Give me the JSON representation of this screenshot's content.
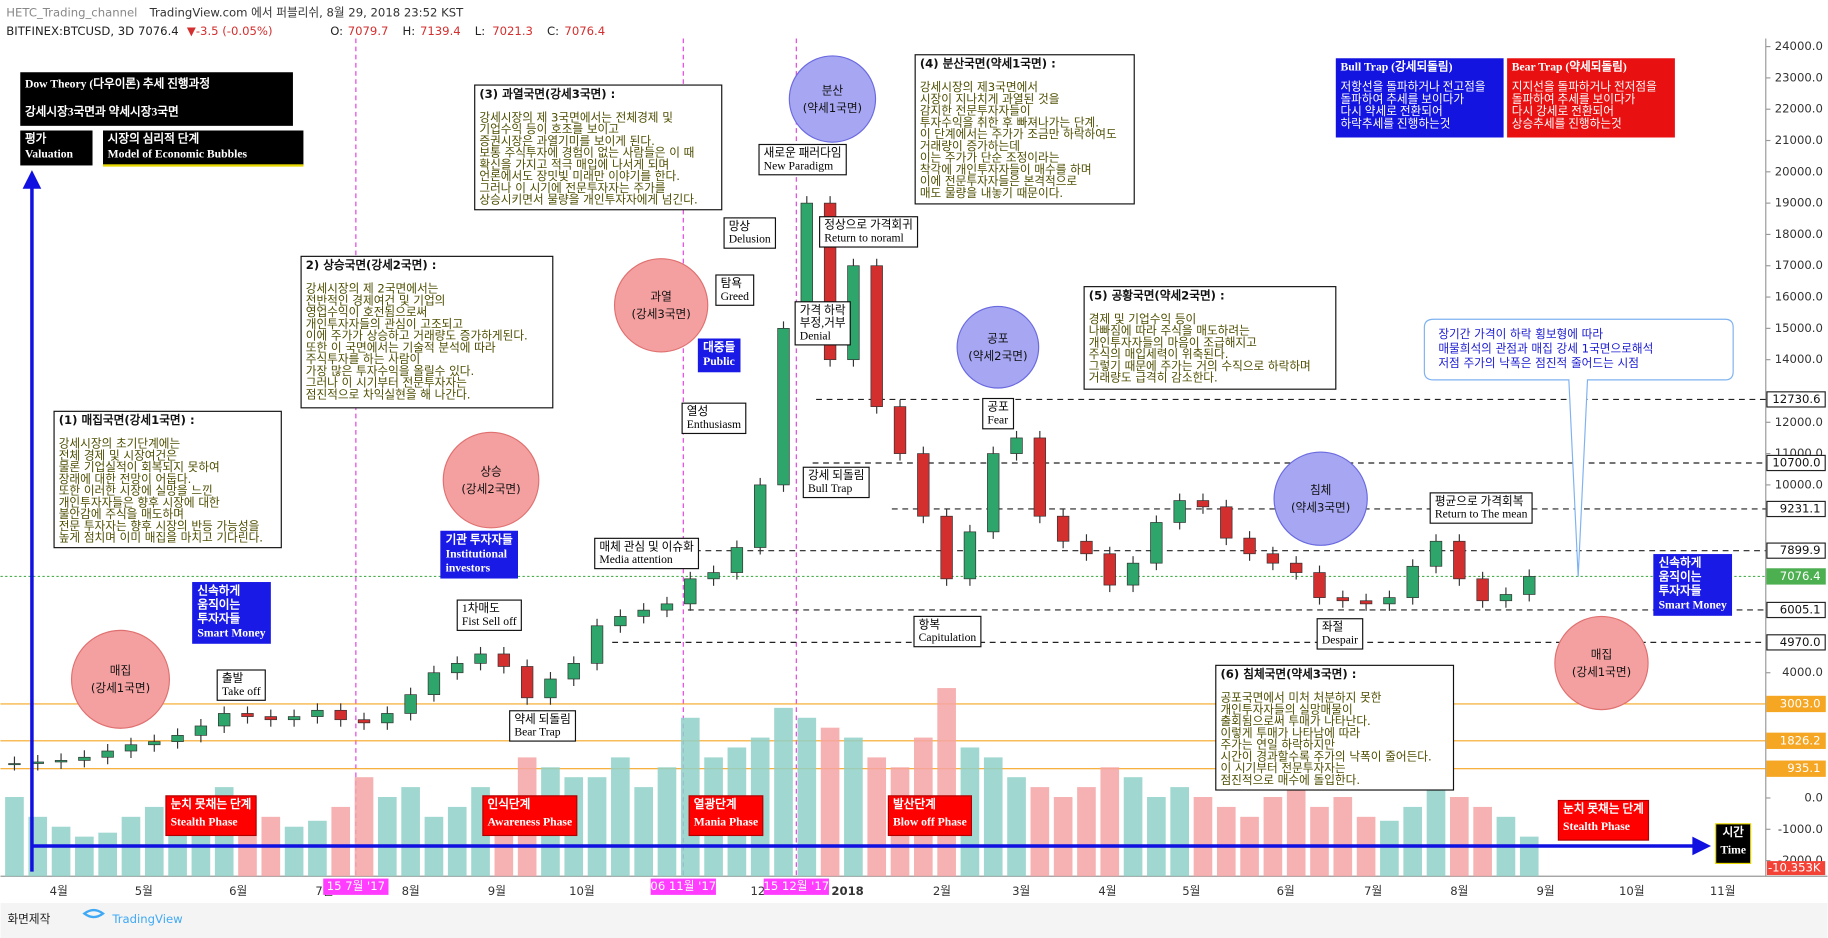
{
  "header": {
    "channel": "HETC_Trading_channel",
    "published": "TradingView.com 에서 퍼블리쉬, 8월 29, 2018 23:52 KST",
    "symbol": "BITFINEX:BTCUSD, 3D",
    "last": "7076.4",
    "change": "▼-3.5 (-0.05%)",
    "ohlc": [
      {
        "key": "O:",
        "value": "7079.7"
      },
      {
        "key": "H:",
        "value": "7139.4"
      },
      {
        "key": "L:",
        "value": "7021.3"
      },
      {
        "key": "C:",
        "value": "7076.4"
      }
    ]
  },
  "chart_data": {
    "type": "candlestick",
    "closes": [
      1100,
      1150,
      1200,
      1300,
      1500,
      1700,
      1800,
      2000,
      2300,
      2700,
      2600,
      2500,
      2600,
      2800,
      2500,
      2400,
      2700,
      3300,
      4000,
      4300,
      4600,
      4200,
      3200,
      3800,
      4300,
      5500,
      5800,
      6000,
      6200,
      7000,
      7200,
      8000,
      10000,
      15000,
      19000,
      14000,
      17000,
      12500,
      11000,
      9000,
      7000,
      8500,
      11000,
      11500,
      9000,
      8200,
      7800,
      6800,
      7500,
      8800,
      9500,
      9300,
      8300,
      7800,
      7500,
      7200,
      6400,
      6300,
      6200,
      6400,
      7400,
      8200,
      7000,
      6300,
      6500,
      7076.4
    ],
    "volume": [
      40,
      30,
      25,
      20,
      22,
      30,
      35,
      25,
      30,
      45,
      40,
      30,
      25,
      28,
      35,
      50,
      40,
      45,
      30,
      35,
      45,
      40,
      60,
      55,
      50,
      50,
      60,
      45,
      55,
      80,
      60,
      65,
      70,
      85,
      80,
      75,
      70,
      60,
      55,
      70,
      95,
      65,
      60,
      50,
      45,
      40,
      45,
      55,
      50,
      40,
      45,
      40,
      35,
      30,
      40,
      45,
      35,
      40,
      30,
      28,
      35,
      45,
      40,
      35,
      30,
      20
    ],
    "up_color": "#2e8b57",
    "down_color": "#d32f2f",
    "volume_up_color": "#8fd0c8",
    "volume_down_color": "#f4a5a5",
    "ylim": [
      -2500,
      24260
    ],
    "yticks": [
      {
        "value": 24000,
        "label": "24000.0"
      },
      {
        "value": 23000,
        "label": "23000.0"
      },
      {
        "value": 22000,
        "label": "22000.0"
      },
      {
        "value": 21000,
        "label": "21000.0"
      },
      {
        "value": 20000,
        "label": "20000.0"
      },
      {
        "value": 19000,
        "label": "19000.0"
      },
      {
        "value": 18000,
        "label": "18000.0"
      },
      {
        "value": 17000,
        "label": "17000.0"
      },
      {
        "value": 16000,
        "label": "16000.0"
      },
      {
        "value": 15000,
        "label": "15000.0"
      },
      {
        "value": 14000,
        "label": "14000.0"
      },
      {
        "value": 12000,
        "label": "12000.0"
      },
      {
        "value": 11000,
        "label": "11000.0"
      },
      {
        "value": 10000,
        "label": "10000.0"
      },
      {
        "value": 4000,
        "label": "4000.0"
      },
      {
        "value": 0,
        "label": "0.0"
      },
      {
        "value": -1000,
        "label": "-1000.0"
      },
      {
        "value": -2000,
        "label": "-2000.0"
      }
    ],
    "price_lines": [
      {
        "value": 12730.6,
        "label": "12730.6",
        "color": "#222222"
      },
      {
        "value": 10700,
        "label": "10700.0",
        "color": "#222222"
      },
      {
        "value": 9231.1,
        "label": "9231.1",
        "color": "#222222"
      },
      {
        "value": 7899.9,
        "label": "7899.9",
        "color": "#222222"
      },
      {
        "value": 7076.4,
        "label": "7076.4",
        "color": "#4caf50"
      },
      {
        "value": 6005.1,
        "label": "6005.1",
        "color": "#222222"
      },
      {
        "value": 4970,
        "label": "4970.0",
        "color": "#222222"
      },
      {
        "value": 3003,
        "label": "3003.0",
        "color": "#f5a623"
      },
      {
        "value": 1826.2,
        "label": "1826.2",
        "color": "#f5a623"
      },
      {
        "value": 935.1,
        "label": "935.1",
        "color": "#f5a623"
      }
    ],
    "volume_label": "-10.353K",
    "months": [
      "4월",
      "5월",
      "6월",
      "7월",
      "8월",
      "9월",
      "10월",
      "12",
      "2018",
      "2월",
      "3월",
      "4월",
      "5월",
      "6월",
      "7월",
      "8월",
      "9월",
      "10월",
      "11월"
    ],
    "date_markers": [
      "15 7월 '17",
      "06 11월 '17",
      "15 12월 '17"
    ]
  },
  "annotations": {
    "title_boxes": [
      {
        "lines": [
          "Dow Theory (다우이론) 추세 진행과정",
          "강세시장3국면과 약세시장3국면"
        ]
      },
      {
        "lines": [
          "평가",
          "Valuation"
        ]
      },
      {
        "lines": [
          "시장의 심리적 단계",
          "Model of Economic Bubbles"
        ]
      }
    ],
    "notes": [
      {
        "lines": [
          "(1) 매집국면(강세1국면) :",
          "강세시장의 초기단계에는",
          "전체 경제 및 시장여건은",
          "물론 기업실적이 회복되지 못하여",
          "장래에 대한 전망이 어둡다.",
          "또한 이러한 시장에 실망을 느낀",
          "개인투자자들은 향후 시장에 대한",
          "불안감에 주식을 매도하며",
          "전문 투자자는 향후 시장의 반등 가능성을",
          "높게 점치며 이미 매집을 마치고 기다린다."
        ]
      },
      {
        "lines": [
          "2) 상승국면(강세2국면) :",
          "강세시장의 제 2국면에서는",
          "전반적인 경제여건 및 기업의",
          "영업수익이 호전됨으로써",
          "개인투자자들의 관심이 고조되고",
          "이에 주가가 상승하고 거래량도 증가하게된다.",
          "또한 이 국면에서는 기술적 분석에 따라",
          "주식투자를 하는 사람이",
          "가장 많은 투자수익을 올릴수 있다.",
          "그러나 이 시기부터 전문투자자는",
          "점진적으로 차익실현을 해 나간다."
        ]
      },
      {
        "lines": [
          "(3) 과열국면(강세3국면) :",
          "강세시장의 제 3국면에서는 전체경제 및",
          "기업수익 등이 호조를 보이고",
          "증권시장은 과열기미를 보이게 된다.",
          "보통 주식투자에 경험이 없는 사람들은 이 때",
          "확신을 가지고 적극 매입에 나서게 되며",
          "언론에서도 장밋빛 미래만 이야기를 한다.",
          "그러나 이 시기에 전문투자자는 주가를",
          "상승시키면서 물량을 개인투자자에게 넘긴다."
        ]
      },
      {
        "lines": [
          "(4) 분산국면(약세1국면) :",
          "강세시장의 제3국면에서",
          "시장이 지나치게 과열된 것을",
          "감지한 전문투자자들이",
          "투자수익을 취한 후 빠져나가는 단계.",
          "이 단계에서는 주가가 조금만 하락하여도",
          "거래량이 증가하는데",
          "이는 주가가 단순 조정이라는",
          "착각에 개인투자자들이 매수를 하며",
          "이에 전문투자자들은 본격적으로",
          "매도 물량을 내놓기 때문이다."
        ]
      },
      {
        "lines": [
          "(5) 공황국면(약세2국면) :",
          "경제 및 기업수익 등이",
          "나빠짐에 따라 주식을 매도하려는",
          "개인투자자들의 마음이 조급해지고",
          "주식의 매입세력이 위축된다.",
          "그렇기 때문에 주가는 거의 수직으로 하락하며",
          "거래량도 급격히 감소한다."
        ]
      },
      {
        "lines": [
          "(6) 침체국면(약세3국면) :",
          "공포국면에서 미처 처분하지 못한",
          "개인투자자들의 실망매물이",
          "출회됨으로써 투매가 나타난다.",
          "이렇게 투매가 나타남에 따라",
          "주가는 연일 하락하지만",
          "시간이 경과할수록 주가의 낙폭이 줄어든다.",
          "이 시기부터 전문투자자는",
          "점진적으로 매수에 돌입한다."
        ]
      }
    ],
    "traps": [
      {
        "lines": [
          "Bull Trap (강세되돌림)",
          "저항선을 돌파하거나 전고점을",
          "돌파하여 추세를 보이다가",
          "다시 약세로 전환되어",
          "하락추세를 진행하는것"
        ]
      },
      {
        "lines": [
          "Bear Trap (약세되돌림)",
          "지지선을 돌파하거나 전저점을",
          "돌파하여 추세를 보이다가",
          "다시 강세로 전환되어",
          "상승추세를 진행하는것"
        ]
      }
    ],
    "callout": {
      "lines": [
        "장기간  가격이 하락 횡보형에 따라",
        "매물희석의 관점과  매집 강세 1국면으로해석",
        "저점 주가의 낙폭은 점진적 줄어드는 시점"
      ]
    },
    "circles": [
      {
        "lines": [
          "매집",
          "(강세1국면)"
        ]
      },
      {
        "lines": [
          "상승",
          "(강세2국면)"
        ]
      },
      {
        "lines": [
          "과열",
          "(강세3국면)"
        ]
      },
      {
        "lines": [
          "분산",
          "(약세1국면)"
        ]
      },
      {
        "lines": [
          "공포",
          "(약세2국면)"
        ]
      },
      {
        "lines": [
          "침체",
          "(약세3국면)"
        ]
      },
      {
        "lines": [
          "매집",
          "(강세1국면)"
        ]
      }
    ],
    "tags": [
      {
        "lines": [
          "출발",
          "Take off"
        ]
      },
      {
        "lines": [
          "1차매도",
          "Fist Sell off"
        ]
      },
      {
        "lines": [
          "약세 되돌림",
          "Bear Trap"
        ]
      },
      {
        "lines": [
          "매체 관심 및 이슈화",
          "Media attention"
        ]
      },
      {
        "lines": [
          "열성",
          "Enthusiasm"
        ]
      },
      {
        "lines": [
          "탐욕",
          "Greed"
        ]
      },
      {
        "lines": [
          "망상",
          "Delusion"
        ]
      },
      {
        "lines": [
          "새로운 패러다임",
          "New Paradigm"
        ]
      },
      {
        "lines": [
          "정상으로 가격회귀",
          "Return to noraml"
        ]
      },
      {
        "lines": [
          "가격 하락",
          "부정,거부",
          "Denial"
        ]
      },
      {
        "lines": [
          "강세 되돌림",
          "Bull Trap"
        ]
      },
      {
        "lines": [
          "항복",
          "Capitulation"
        ]
      },
      {
        "lines": [
          "공포",
          "Fear"
        ]
      },
      {
        "lines": [
          "좌절",
          "Despair"
        ]
      },
      {
        "lines": [
          "평균으로 가격회복",
          "Return to The mean"
        ]
      }
    ],
    "blue_tags": [
      {
        "lines": [
          "대중들",
          "Public"
        ]
      },
      {
        "lines": [
          "기관 투자자들",
          "Institutional",
          "investors"
        ]
      },
      {
        "lines": [
          "신속하게",
          "움직이는",
          "투자자들",
          "Smart Money"
        ]
      },
      {
        "lines": [
          "신속하게",
          "움직이는",
          "투자자들",
          "Smart Money"
        ]
      }
    ],
    "phases": [
      {
        "lines": [
          "눈치 못채는 단계",
          "Stealth Phase"
        ]
      },
      {
        "lines": [
          "인식단계",
          "Awareness Phase"
        ]
      },
      {
        "lines": [
          "열광단계",
          "Mania Phase"
        ]
      },
      {
        "lines": [
          "발산단계",
          "Blow off Phase"
        ]
      },
      {
        "lines": [
          "눈치 못채는 단계",
          "Stealth Phase"
        ]
      }
    ],
    "time_box": {
      "lines": [
        "시간",
        "Time"
      ]
    }
  },
  "footer": {
    "made": "화면제작",
    "brand": "TradingView"
  }
}
